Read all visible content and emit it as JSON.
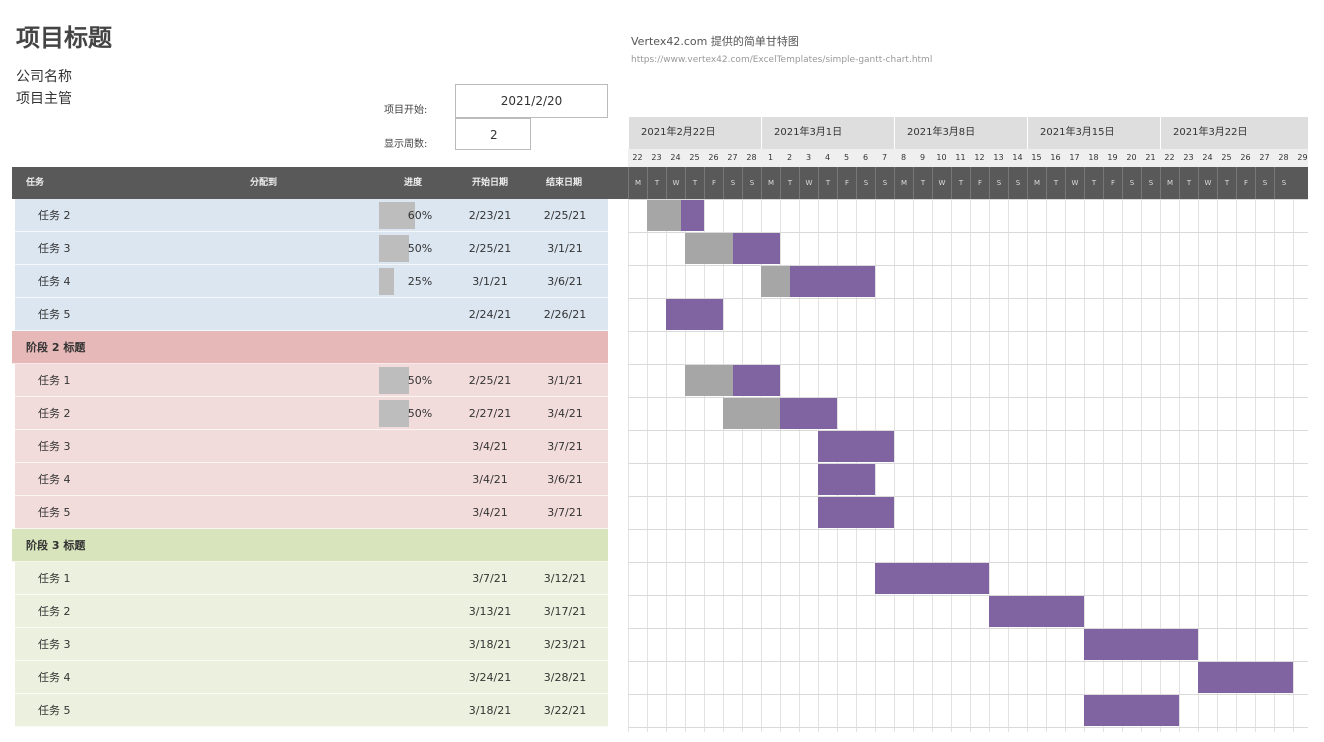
{
  "header": {
    "title": "项目标题",
    "company": "公司名称",
    "manager": "项目主管",
    "vertex_title": "Vertex42.com 提供的简单甘特图",
    "vertex_url": "https://www.vertex42.com/ExcelTemplates/simple-gantt-chart.html"
  },
  "settings": {
    "start_label": "项目开始:",
    "start_value": "2021/2/20",
    "week_label": "显示周数:",
    "week_value": "2"
  },
  "columns": {
    "task": "任务",
    "assignee": "分配到",
    "progress": "进度",
    "start": "开始日期",
    "end": "结束日期"
  },
  "colors": {
    "phase1": "#dce6f1",
    "phase2": "#f2dcdb",
    "phase2_header": "#e6b8b7",
    "phase3": "#ebf1de",
    "phase3_header": "#d8e4bc",
    "bar_done": "#a6a6a6",
    "bar_todo": "#8064a2"
  },
  "rows": [
    {
      "type": "task",
      "group": "p1",
      "task": "任务 2",
      "progress_label": "60%",
      "progress": 60,
      "start": "2/23/21",
      "end": "2/25/21"
    },
    {
      "type": "task",
      "group": "p1",
      "task": "任务 3",
      "progress_label": "50%",
      "progress": 50,
      "start": "2/25/21",
      "end": "3/1/21"
    },
    {
      "type": "task",
      "group": "p1",
      "task": "任务 4",
      "progress_label": "25%",
      "progress": 25,
      "start": "3/1/21",
      "end": "3/6/21"
    },
    {
      "type": "task",
      "group": "p1",
      "task": "任务 5",
      "progress_label": "",
      "progress": 0,
      "start": "2/24/21",
      "end": "2/26/21"
    },
    {
      "type": "phase",
      "group": "p2",
      "task": "阶段 2 标题"
    },
    {
      "type": "task",
      "group": "p2",
      "task": "任务 1",
      "progress_label": "50%",
      "progress": 50,
      "start": "2/25/21",
      "end": "3/1/21"
    },
    {
      "type": "task",
      "group": "p2",
      "task": "任务 2",
      "progress_label": "50%",
      "progress": 50,
      "start": "2/27/21",
      "end": "3/4/21"
    },
    {
      "type": "task",
      "group": "p2",
      "task": "任务 3",
      "progress_label": "",
      "progress": 0,
      "start": "3/4/21",
      "end": "3/7/21"
    },
    {
      "type": "task",
      "group": "p2",
      "task": "任务 4",
      "progress_label": "",
      "progress": 0,
      "start": "3/4/21",
      "end": "3/6/21"
    },
    {
      "type": "task",
      "group": "p2",
      "task": "任务 5",
      "progress_label": "",
      "progress": 0,
      "start": "3/4/21",
      "end": "3/7/21"
    },
    {
      "type": "phase",
      "group": "p3",
      "task": "阶段 3 标题"
    },
    {
      "type": "task",
      "group": "p3",
      "task": "任务 1",
      "progress_label": "",
      "progress": 0,
      "start": "3/7/21",
      "end": "3/12/21"
    },
    {
      "type": "task",
      "group": "p3",
      "task": "任务 2",
      "progress_label": "",
      "progress": 0,
      "start": "3/13/21",
      "end": "3/17/21"
    },
    {
      "type": "task",
      "group": "p3",
      "task": "任务 3",
      "progress_label": "",
      "progress": 0,
      "start": "3/18/21",
      "end": "3/23/21"
    },
    {
      "type": "task",
      "group": "p3",
      "task": "任务 4",
      "progress_label": "",
      "progress": 0,
      "start": "3/24/21",
      "end": "3/28/21"
    },
    {
      "type": "task",
      "group": "p3",
      "task": "任务 5",
      "progress_label": "",
      "progress": 0,
      "start": "3/18/21",
      "end": "3/22/21"
    }
  ],
  "calendar": {
    "weeks": [
      "2021年2月22日",
      "2021年3月1日",
      "2021年3月8日",
      "2021年3月15日",
      "2021年3月22日"
    ],
    "days": [
      "22",
      "23",
      "24",
      "25",
      "26",
      "27",
      "28",
      "1",
      "2",
      "3",
      "4",
      "5",
      "6",
      "7",
      "8",
      "9",
      "10",
      "11",
      "12",
      "13",
      "14",
      "15",
      "16",
      "17",
      "18",
      "19",
      "20",
      "21",
      "22",
      "23",
      "24",
      "25",
      "26",
      "27",
      "28",
      "29"
    ],
    "weekdays": [
      "M",
      "T",
      "W",
      "T",
      "F",
      "S",
      "S"
    ]
  }
}
